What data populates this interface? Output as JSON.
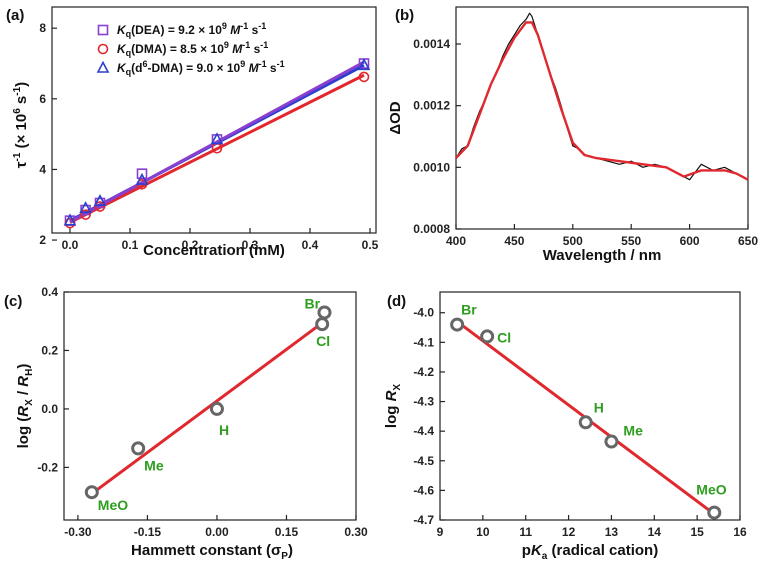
{
  "panels": [
    {
      "label": "(a)",
      "chart_data": {
        "type": "scatter",
        "title": "",
        "xlabel": "Concentration (mM)",
        "ylabel": "τ-1 (× 106 s-1)",
        "xlim": [
          -0.03,
          0.51
        ],
        "ylim": [
          2.2,
          8.6
        ],
        "xticks": [
          "0.0",
          "0.1",
          "0.2",
          "0.3",
          "0.4",
          "0.5"
        ],
        "yticks": [
          "2",
          "4",
          "6",
          "8"
        ],
        "series": [
          {
            "name": "Kq(DEA)",
            "legend": "Kq(DEA) = 9.2 × 109 M-1 s-1",
            "marker": "square",
            "color": "#8a3fcf",
            "x": [
              0,
              0.026,
              0.05,
              0.12,
              0.245,
              0.49
            ],
            "y": [
              2.55,
              2.85,
              3.05,
              3.88,
              4.85,
              7.0
            ],
            "fit": [
              [
                0,
                2.52
              ],
              [
                0.49,
                7.04
              ]
            ]
          },
          {
            "name": "Kq(DMA)",
            "legend": "Kq(DMA) = 8.5 × 109 M-1 s-1",
            "marker": "circle",
            "color": "#e0282e",
            "x": [
              0,
              0.026,
              0.05,
              0.12,
              0.245,
              0.49
            ],
            "y": [
              2.48,
              2.72,
              2.95,
              3.58,
              4.6,
              6.62
            ],
            "fit": [
              [
                0,
                2.5
              ],
              [
                0.49,
                6.67
              ]
            ]
          },
          {
            "name": "Kq(d6-DMA)",
            "legend": "Kq(d6-DMA) = 9.0 × 109 M-1 s-1",
            "marker": "triangle",
            "color": "#2a3fcf",
            "x": [
              0,
              0.026,
              0.05,
              0.12,
              0.245,
              0.49
            ],
            "y": [
              2.55,
              2.9,
              3.1,
              3.7,
              4.85,
              6.95
            ],
            "fit": [
              [
                0,
                2.55
              ],
              [
                0.49,
                6.95
              ]
            ]
          }
        ],
        "legend_position": "top-left"
      }
    },
    {
      "label": "(b)",
      "chart_data": {
        "type": "line",
        "title": "",
        "xlabel": "Wavelength / nm",
        "ylabel": "ΔOD",
        "xlim": [
          400,
          650
        ],
        "ylim": [
          0.0008,
          0.00152
        ],
        "xticks": [
          "400",
          "450",
          "500",
          "550",
          "600",
          "650"
        ],
        "yticks": [
          "0.0008",
          "0.0010",
          "0.0012",
          "0.0014"
        ],
        "series": [
          {
            "name": "measured",
            "color": "#111111",
            "x": [
              400,
              405,
              410,
              415,
              420,
              425,
              430,
              435,
              440,
              445,
              450,
              455,
              460,
              463,
              465,
              470,
              475,
              480,
              485,
              490,
              495,
              500,
              505,
              510,
              520,
              530,
              540,
              550,
              560,
              570,
              580,
              590,
              600,
              610,
              620,
              630,
              640,
              650
            ],
            "y": [
              0.00103,
              0.00106,
              0.00107,
              0.00113,
              0.00118,
              0.00122,
              0.00127,
              0.00131,
              0.00136,
              0.0014,
              0.00143,
              0.00146,
              0.00148,
              0.0015,
              0.00149,
              0.00143,
              0.00137,
              0.00131,
              0.00126,
              0.0012,
              0.00113,
              0.00107,
              0.00106,
              0.00104,
              0.00103,
              0.00102,
              0.00101,
              0.00102,
              0.001,
              0.00101,
              0.001,
              0.00098,
              0.00096,
              0.00101,
              0.00099,
              0.001,
              0.00098,
              0.00096
            ]
          },
          {
            "name": "fit",
            "color": "#e0282e",
            "x": [
              400,
              410,
              420,
              430,
              440,
              450,
              460,
              465,
              470,
              480,
              490,
              500,
              510,
              520,
              540,
              560,
              580,
              595,
              610,
              620,
              630,
              640,
              650
            ],
            "y": [
              0.00103,
              0.00107,
              0.00117,
              0.00127,
              0.00135,
              0.00142,
              0.00147,
              0.00147,
              0.00143,
              0.00131,
              0.00119,
              0.00108,
              0.00104,
              0.00103,
              0.00102,
              0.00101,
              0.001,
              0.00097,
              0.00099,
              0.00099,
              0.00099,
              0.00098,
              0.00096
            ]
          }
        ]
      }
    },
    {
      "label": "(c)",
      "chart_data": {
        "type": "scatter",
        "title": "",
        "xlabel": "Hammett constant (σp)",
        "ylabel": "log (Rx / RH)",
        "xlim": [
          -0.33,
          0.3
        ],
        "ylim": [
          -0.38,
          0.4
        ],
        "xticks": [
          "-0.30",
          "-0.15",
          "0.00",
          "0.15",
          "0.30"
        ],
        "yticks": [
          "-0.2",
          "0.0",
          "0.2",
          "0.4"
        ],
        "points": [
          {
            "name": "MeO",
            "x": -0.27,
            "y": -0.285
          },
          {
            "name": "Me",
            "x": -0.17,
            "y": -0.135
          },
          {
            "name": "H",
            "x": 0.0,
            "y": 0.0
          },
          {
            "name": "Cl",
            "x": 0.227,
            "y": 0.29
          },
          {
            "name": "Br",
            "x": 0.232,
            "y": 0.33
          }
        ],
        "fit": [
          [
            -0.27,
            -0.29
          ],
          [
            0.232,
            0.3
          ]
        ]
      }
    },
    {
      "label": "(d)",
      "chart_data": {
        "type": "scatter",
        "title": "",
        "xlabel": "pKa (radical cation)",
        "ylabel": "log Rx",
        "xlim": [
          9,
          16
        ],
        "ylim": [
          -4.7,
          -3.93
        ],
        "xticks": [
          "9",
          "10",
          "11",
          "12",
          "13",
          "14",
          "15",
          "16"
        ],
        "yticks": [
          "-4.0",
          "-4.1",
          "-4.2",
          "-4.3",
          "-4.4",
          "-4.5",
          "-4.6",
          "-4.7"
        ],
        "points": [
          {
            "name": "Br",
            "x": 9.4,
            "y": -4.04
          },
          {
            "name": "Cl",
            "x": 10.1,
            "y": -4.08
          },
          {
            "name": "H",
            "x": 12.4,
            "y": -4.37
          },
          {
            "name": "Me",
            "x": 13.0,
            "y": -4.435
          },
          {
            "name": "MeO",
            "x": 15.4,
            "y": -4.675
          }
        ],
        "fit": [
          [
            9.4,
            -4.03
          ],
          [
            15.4,
            -4.68
          ]
        ]
      }
    }
  ]
}
